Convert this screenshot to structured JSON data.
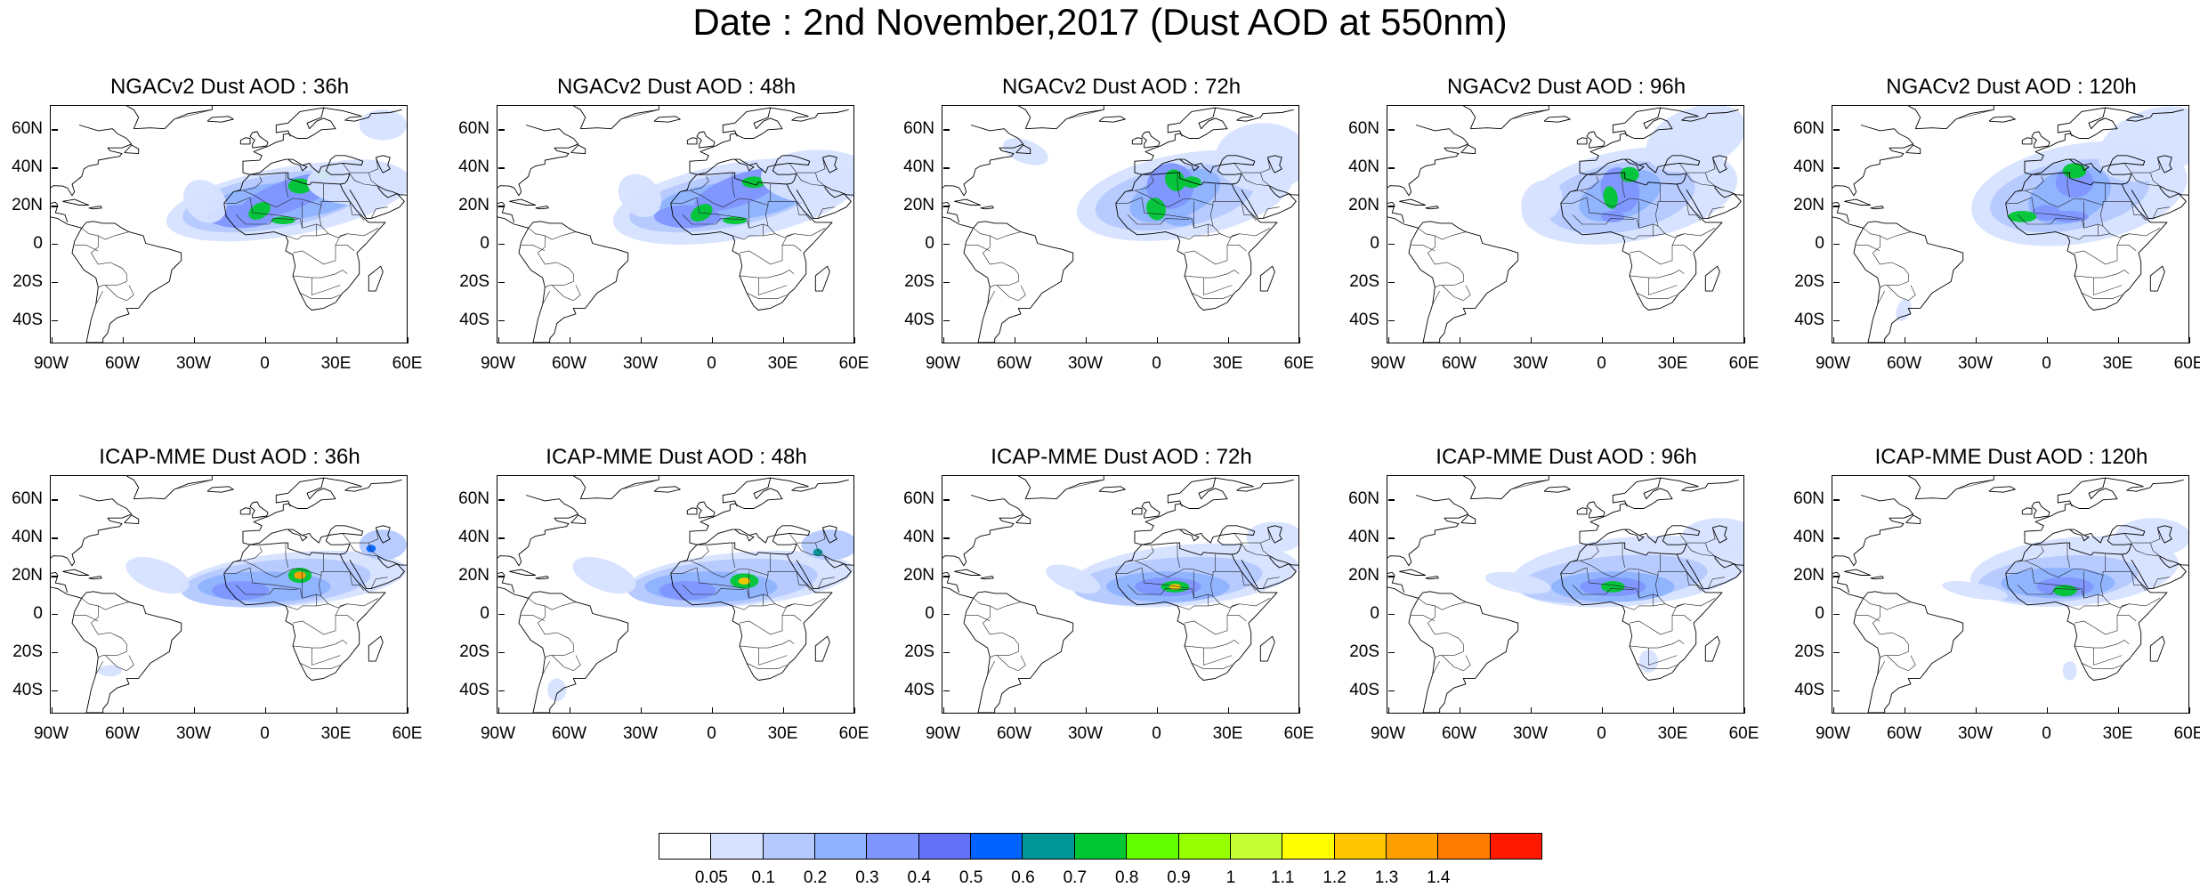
{
  "title": "Date : 2nd November,2017 (Dust AOD at 550nm)",
  "lat_ticks": [
    "60N",
    "40N",
    "20N",
    "0",
    "20S",
    "40S"
  ],
  "lon_ticks": [
    "90W",
    "60W",
    "30W",
    "0",
    "30E",
    "60E"
  ],
  "panels": [
    {
      "title": "NGACv2 Dust AOD : 36h"
    },
    {
      "title": "NGACv2 Dust AOD : 48h"
    },
    {
      "title": "NGACv2 Dust AOD : 72h"
    },
    {
      "title": "NGACv2 Dust AOD : 96h"
    },
    {
      "title": "NGACv2 Dust AOD : 120h"
    },
    {
      "title": "ICAP-MME Dust AOD : 36h"
    },
    {
      "title": "ICAP-MME Dust AOD : 48h"
    },
    {
      "title": "ICAP-MME Dust AOD : 72h"
    },
    {
      "title": "ICAP-MME Dust AOD : 96h"
    },
    {
      "title": "ICAP-MME Dust AOD : 120h"
    }
  ],
  "colorbar": {
    "labels": [
      "0.05",
      "0.1",
      "0.2",
      "0.3",
      "0.4",
      "0.5",
      "0.6",
      "0.7",
      "0.8",
      "0.9",
      "1",
      "1.1",
      "1.2",
      "1.3",
      "1.4"
    ],
    "colors": [
      "#ffffff",
      "#d6e2ff",
      "#b5c9ff",
      "#8eb2ff",
      "#7f96ff",
      "#6370f8",
      "#0063ff",
      "#009696",
      "#00c633",
      "#63ff00",
      "#96ff00",
      "#c6ff33",
      "#ffff00",
      "#ffc600",
      "#ffa000",
      "#ff7c00",
      "#ff1900"
    ]
  }
}
